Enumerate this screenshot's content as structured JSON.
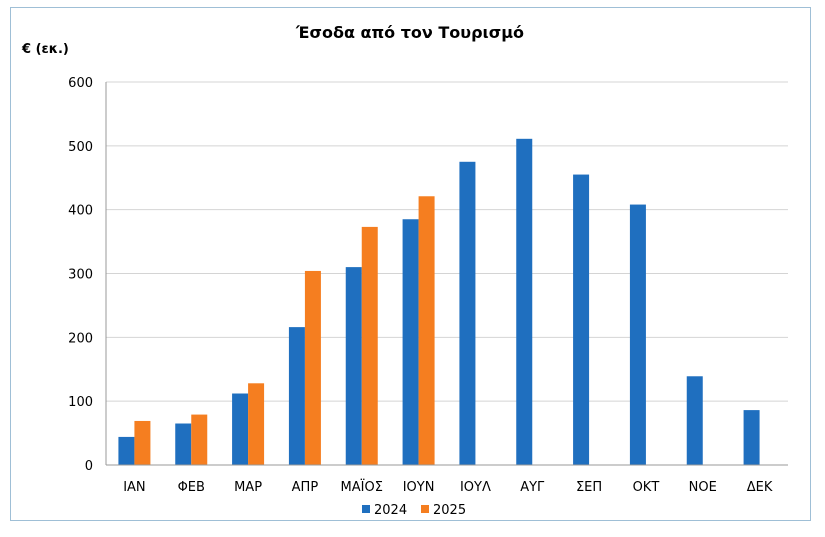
{
  "chart_data": {
    "type": "bar",
    "title": "Έσοδα από τον Τουρισμό",
    "ylabel": "€ (εκ.)",
    "xlabel": "",
    "ylim": [
      0,
      600
    ],
    "yticks": [
      0,
      100,
      200,
      300,
      400,
      500,
      600
    ],
    "grid": true,
    "legend_position": "bottom",
    "categories": [
      "ΙΑΝ",
      "ΦΕΒ",
      "ΜΑΡ",
      "ΑΠΡ",
      "ΜΑΪΟΣ",
      "ΙΟΥΝ",
      "ΙΟΥΛ",
      "ΑΥΓ",
      "ΣΕΠ",
      "ΟΚΤ",
      "ΝΟΕ",
      "ΔΕΚ"
    ],
    "series": [
      {
        "name": "2024",
        "color": "#1f6fbf",
        "values": [
          44,
          65,
          112,
          216,
          310,
          385,
          475,
          511,
          455,
          408,
          139,
          86
        ]
      },
      {
        "name": "2025",
        "color": "#f57e20",
        "values": [
          69,
          79,
          128,
          304,
          373,
          421,
          null,
          null,
          null,
          null,
          null,
          null
        ]
      }
    ]
  }
}
